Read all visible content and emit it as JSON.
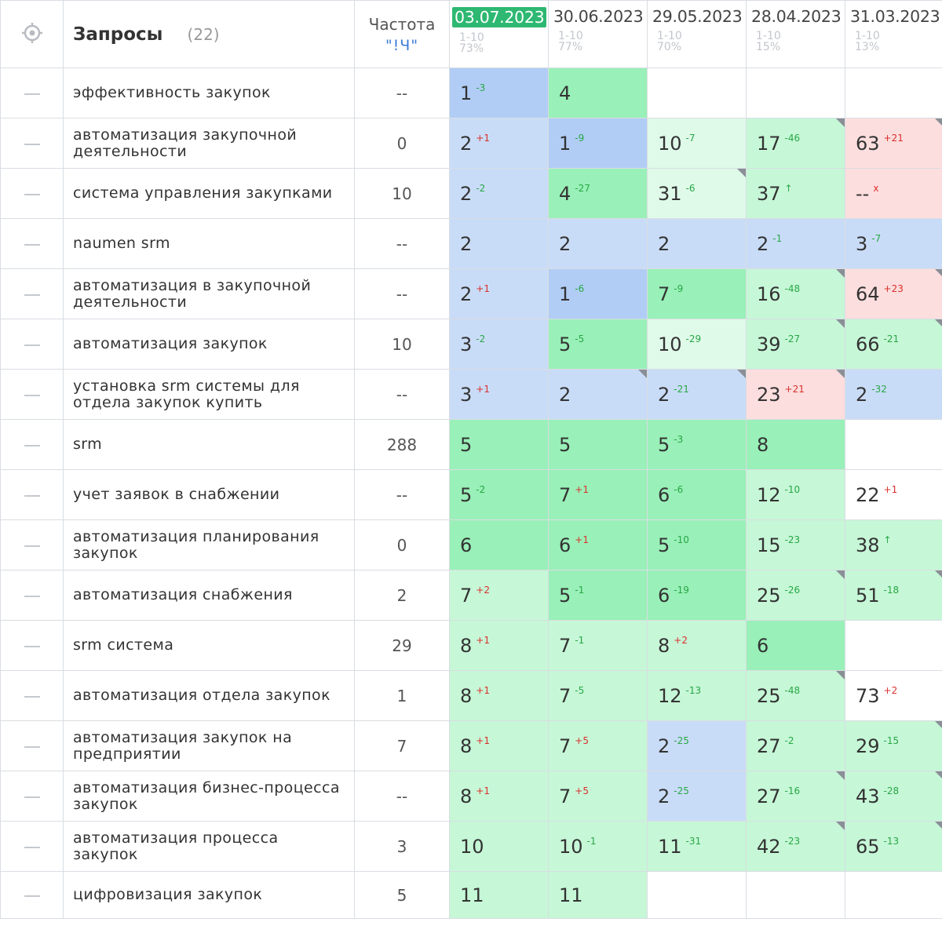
{
  "header": {
    "queries_title": "Запросы",
    "queries_count": "(22)",
    "frequency_title": "Частота",
    "frequency_sub": "\"!Ч\"",
    "dates": [
      {
        "date": "03.07.2023",
        "range": "1-10",
        "pct": "73%",
        "active": true
      },
      {
        "date": "30.06.2023",
        "range": "1-10",
        "pct": "77%"
      },
      {
        "date": "29.05.2023",
        "range": "1-10",
        "pct": "70%"
      },
      {
        "date": "28.04.2023",
        "range": "1-10",
        "pct": "15%"
      },
      {
        "date": "31.03.2023",
        "range": "1-10",
        "pct": "13%"
      }
    ]
  },
  "rows": [
    {
      "query": "эффективность закупок",
      "freq": "--",
      "cells": [
        {
          "v": "1",
          "d": "-3",
          "dir": "up",
          "bg": "blue-dark"
        },
        {
          "v": "4",
          "bg": "green"
        },
        {
          "v": "",
          "bg": "white"
        },
        {
          "v": "",
          "bg": "white"
        },
        {
          "v": "",
          "bg": "white"
        }
      ]
    },
    {
      "query": "автоматизация закупочной деятельности",
      "freq": "0",
      "cells": [
        {
          "v": "2",
          "d": "+1",
          "dir": "down",
          "bg": "blue"
        },
        {
          "v": "1",
          "d": "-9",
          "dir": "up",
          "bg": "blue-dark"
        },
        {
          "v": "10",
          "d": "-7",
          "dir": "up",
          "bg": "green-pale"
        },
        {
          "v": "17",
          "d": "-46",
          "dir": "up",
          "bg": "green-light",
          "corner": true
        },
        {
          "v": "63",
          "d": "+21",
          "dir": "down",
          "bg": "red",
          "corner": true
        }
      ]
    },
    {
      "query": "система управления закупками",
      "freq": "10",
      "cells": [
        {
          "v": "2",
          "d": "-2",
          "dir": "up",
          "bg": "blue"
        },
        {
          "v": "4",
          "d": "-27",
          "dir": "up",
          "bg": "green"
        },
        {
          "v": "31",
          "d": "-6",
          "dir": "up",
          "bg": "green-pale",
          "corner": true
        },
        {
          "v": "37",
          "d": "↑",
          "dir": "up",
          "bg": "green-light"
        },
        {
          "v": "--",
          "d": "x",
          "dir": "down",
          "bg": "red"
        }
      ]
    },
    {
      "query": "naumen srm",
      "freq": "--",
      "cells": [
        {
          "v": "2",
          "bg": "blue"
        },
        {
          "v": "2",
          "bg": "blue"
        },
        {
          "v": "2",
          "bg": "blue"
        },
        {
          "v": "2",
          "d": "-1",
          "dir": "up",
          "bg": "blue"
        },
        {
          "v": "3",
          "d": "-7",
          "dir": "up",
          "bg": "blue"
        }
      ]
    },
    {
      "query": "автоматизация в закупочной деятельности",
      "freq": "--",
      "cells": [
        {
          "v": "2",
          "d": "+1",
          "dir": "down",
          "bg": "blue"
        },
        {
          "v": "1",
          "d": "-6",
          "dir": "up",
          "bg": "blue-dark"
        },
        {
          "v": "7",
          "d": "-9",
          "dir": "up",
          "bg": "green"
        },
        {
          "v": "16",
          "d": "-48",
          "dir": "up",
          "bg": "green-light",
          "corner": true
        },
        {
          "v": "64",
          "d": "+23",
          "dir": "down",
          "bg": "red",
          "corner": true
        }
      ]
    },
    {
      "query": "автоматизация закупок",
      "freq": "10",
      "cells": [
        {
          "v": "3",
          "d": "-2",
          "dir": "up",
          "bg": "blue"
        },
        {
          "v": "5",
          "d": "-5",
          "dir": "up",
          "bg": "green"
        },
        {
          "v": "10",
          "d": "-29",
          "dir": "up",
          "bg": "green-pale"
        },
        {
          "v": "39",
          "d": "-27",
          "dir": "up",
          "bg": "green-light",
          "corner": true
        },
        {
          "v": "66",
          "d": "-21",
          "dir": "up",
          "bg": "green-light",
          "corner": true
        }
      ]
    },
    {
      "query": "установка srm системы для отдела закупок купить",
      "freq": "--",
      "cells": [
        {
          "v": "3",
          "d": "+1",
          "dir": "down",
          "bg": "blue"
        },
        {
          "v": "2",
          "bg": "blue",
          "corner": true
        },
        {
          "v": "2",
          "d": "-21",
          "dir": "up",
          "bg": "blue",
          "corner": true
        },
        {
          "v": "23",
          "d": "+21",
          "dir": "down",
          "bg": "red",
          "corner": true
        },
        {
          "v": "2",
          "d": "-32",
          "dir": "up",
          "bg": "blue"
        }
      ]
    },
    {
      "query": "srm",
      "freq": "288",
      "cells": [
        {
          "v": "5",
          "bg": "green"
        },
        {
          "v": "5",
          "bg": "green"
        },
        {
          "v": "5",
          "d": "-3",
          "dir": "up",
          "bg": "green"
        },
        {
          "v": "8",
          "bg": "green"
        },
        {
          "v": "",
          "bg": "white"
        }
      ]
    },
    {
      "query": "учет заявок в снабжении",
      "freq": "--",
      "cells": [
        {
          "v": "5",
          "d": "-2",
          "dir": "up",
          "bg": "green"
        },
        {
          "v": "7",
          "d": "+1",
          "dir": "down",
          "bg": "green"
        },
        {
          "v": "6",
          "d": "-6",
          "dir": "up",
          "bg": "green"
        },
        {
          "v": "12",
          "d": "-10",
          "dir": "up",
          "bg": "green-light"
        },
        {
          "v": "22",
          "d": "+1",
          "dir": "down",
          "bg": "white"
        }
      ]
    },
    {
      "query": "автоматизация планирования закупок",
      "freq": "0",
      "cells": [
        {
          "v": "6",
          "bg": "green"
        },
        {
          "v": "6",
          "d": "+1",
          "dir": "down",
          "bg": "green"
        },
        {
          "v": "5",
          "d": "-10",
          "dir": "up",
          "bg": "green"
        },
        {
          "v": "15",
          "d": "-23",
          "dir": "up",
          "bg": "green-light"
        },
        {
          "v": "38",
          "d": "↑",
          "dir": "up",
          "bg": "green-light"
        }
      ]
    },
    {
      "query": "автоматизация снабжения",
      "freq": "2",
      "cells": [
        {
          "v": "7",
          "d": "+2",
          "dir": "down",
          "bg": "green-light"
        },
        {
          "v": "5",
          "d": "-1",
          "dir": "up",
          "bg": "green"
        },
        {
          "v": "6",
          "d": "-19",
          "dir": "up",
          "bg": "green"
        },
        {
          "v": "25",
          "d": "-26",
          "dir": "up",
          "bg": "green-light",
          "corner": true
        },
        {
          "v": "51",
          "d": "-18",
          "dir": "up",
          "bg": "green-light",
          "corner": true
        }
      ]
    },
    {
      "query": "srm система",
      "freq": "29",
      "cells": [
        {
          "v": "8",
          "d": "+1",
          "dir": "down",
          "bg": "green-light"
        },
        {
          "v": "7",
          "d": "-1",
          "dir": "up",
          "bg": "green-light"
        },
        {
          "v": "8",
          "d": "+2",
          "dir": "down",
          "bg": "green-light"
        },
        {
          "v": "6",
          "bg": "green"
        },
        {
          "v": "",
          "bg": "white"
        }
      ]
    },
    {
      "query": "автоматизация отдела закупок",
      "freq": "1",
      "cells": [
        {
          "v": "8",
          "d": "+1",
          "dir": "down",
          "bg": "green-light"
        },
        {
          "v": "7",
          "d": "-5",
          "dir": "up",
          "bg": "green-light"
        },
        {
          "v": "12",
          "d": "-13",
          "dir": "up",
          "bg": "green-light"
        },
        {
          "v": "25",
          "d": "-48",
          "dir": "up",
          "bg": "green-light",
          "corner": true
        },
        {
          "v": "73",
          "d": "+2",
          "dir": "down",
          "bg": "white"
        }
      ]
    },
    {
      "query": "автоматизация закупок на предприятии",
      "freq": "7",
      "cells": [
        {
          "v": "8",
          "d": "+1",
          "dir": "down",
          "bg": "green-light"
        },
        {
          "v": "7",
          "d": "+5",
          "dir": "down",
          "bg": "green-light"
        },
        {
          "v": "2",
          "d": "-25",
          "dir": "up",
          "bg": "blue"
        },
        {
          "v": "27",
          "d": "-2",
          "dir": "up",
          "bg": "green-light"
        },
        {
          "v": "29",
          "d": "-15",
          "dir": "up",
          "bg": "green-light",
          "corner": true
        }
      ]
    },
    {
      "query": "автоматизация бизнес-процесса закупок",
      "freq": "--",
      "cells": [
        {
          "v": "8",
          "d": "+1",
          "dir": "down",
          "bg": "green-light"
        },
        {
          "v": "7",
          "d": "+5",
          "dir": "down",
          "bg": "green-light"
        },
        {
          "v": "2",
          "d": "-25",
          "dir": "up",
          "bg": "blue"
        },
        {
          "v": "27",
          "d": "-16",
          "dir": "up",
          "bg": "green-light",
          "corner": true
        },
        {
          "v": "43",
          "d": "-28",
          "dir": "up",
          "bg": "green-light",
          "corner": true
        }
      ]
    },
    {
      "query": "автоматизация процесса закупок",
      "freq": "3",
      "cells": [
        {
          "v": "10",
          "bg": "green-light"
        },
        {
          "v": "10",
          "d": "-1",
          "dir": "up",
          "bg": "green-light"
        },
        {
          "v": "11",
          "d": "-31",
          "dir": "up",
          "bg": "green-light"
        },
        {
          "v": "42",
          "d": "-23",
          "dir": "up",
          "bg": "green-light",
          "corner": true
        },
        {
          "v": "65",
          "d": "-13",
          "dir": "up",
          "bg": "green-light",
          "corner": true
        }
      ]
    },
    {
      "query": "цифровизация закупок",
      "freq": "5",
      "cells": [
        {
          "v": "11",
          "bg": "green-light"
        },
        {
          "v": "11",
          "bg": "green-light"
        },
        {
          "v": "",
          "bg": "white"
        },
        {
          "v": "",
          "bg": "white"
        },
        {
          "v": "",
          "bg": "white"
        }
      ]
    }
  ]
}
